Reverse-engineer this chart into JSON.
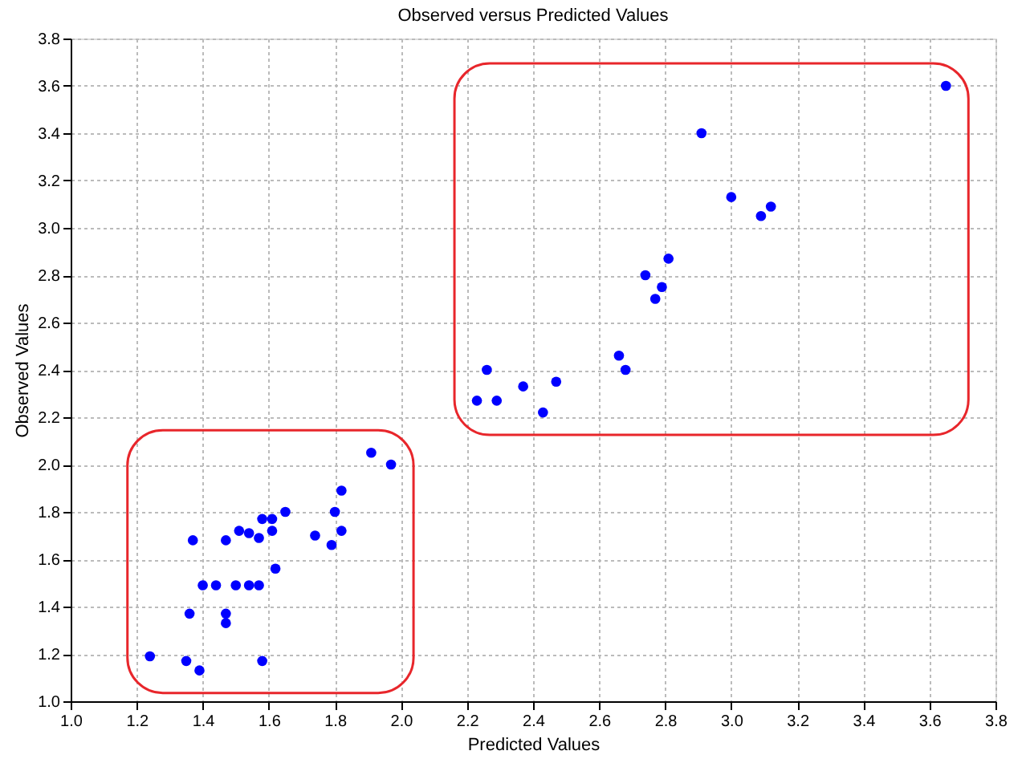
{
  "chart_data": {
    "type": "scatter",
    "title": "Observed versus Predicted Values",
    "xlabel": "Predicted Values",
    "ylabel": "Observed Values",
    "series": [
      {
        "color": "#0000ff",
        "x": [
          1.24,
          1.35,
          1.39,
          1.36,
          1.37,
          1.4,
          1.44,
          1.47,
          1.47,
          1.47,
          1.5,
          1.51,
          1.54,
          1.54,
          1.57,
          1.57,
          1.58,
          1.58,
          1.61,
          1.61,
          1.62,
          1.65,
          1.74,
          1.79,
          1.8,
          1.82,
          1.82,
          1.91,
          1.97
        ],
        "values": [
          1.19,
          1.17,
          1.13,
          1.37,
          1.68,
          1.49,
          1.49,
          1.68,
          1.37,
          1.33,
          1.49,
          1.72,
          1.71,
          1.49,
          1.69,
          1.49,
          1.77,
          1.17,
          1.72,
          1.77,
          1.56,
          1.8,
          1.7,
          1.66,
          1.8,
          1.72,
          1.89,
          2.05,
          2.0
        ]
      },
      {
        "color": "#0000ff",
        "x": [
          2.23,
          2.26,
          2.29,
          2.37,
          2.43,
          2.47,
          2.66,
          2.68,
          2.74,
          2.79,
          2.77,
          2.81,
          2.91,
          3.0,
          3.09,
          3.12,
          3.65
        ],
        "values": [
          2.27,
          2.4,
          2.27,
          2.33,
          2.22,
          2.35,
          2.46,
          2.4,
          2.8,
          2.75,
          2.7,
          2.87,
          3.4,
          3.13,
          3.05,
          3.09,
          3.6
        ]
      }
    ],
    "xlim": [
      1.0,
      3.8
    ],
    "xticks": [
      {
        "value": 1,
        "label": "1.0"
      },
      1.2,
      1.4,
      1.6,
      1.8,
      {
        "value": 2,
        "label": "2.0"
      },
      2.2,
      2.4,
      2.6,
      2.8,
      {
        "value": 3,
        "label": "3.0"
      },
      3.2,
      3.4,
      3.6,
      3.8
    ],
    "ylim": [
      1.0,
      3.8
    ],
    "yticks": [
      {
        "value": 1,
        "label": "1.0"
      },
      1.2,
      1.4,
      1.6,
      1.8,
      {
        "value": 2,
        "label": "2.0"
      },
      2.2,
      2.4,
      2.6,
      2.8,
      {
        "value": 3,
        "label": "3.0"
      },
      3.2,
      3.4,
      3.6,
      3.8
    ],
    "grid": true,
    "marker": "circle",
    "legend": false
  }
}
